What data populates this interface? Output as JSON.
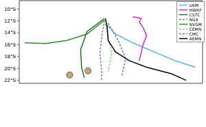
{
  "chart_data": {
    "type": "line",
    "xlim": [
      50,
      70
    ],
    "ylim": [
      -22.5,
      -8.6
    ],
    "yticks": [
      {
        "value": -10,
        "label": "10°S"
      },
      {
        "value": -12,
        "label": "12°S"
      },
      {
        "value": -14,
        "label": "14°S"
      },
      {
        "value": -16,
        "label": "16°S"
      },
      {
        "value": -18,
        "label": "18°S"
      },
      {
        "value": -20,
        "label": "20°S"
      },
      {
        "value": -22,
        "label": "22°S"
      }
    ],
    "tick_labels": "y",
    "grid": false,
    "legend": "upper right",
    "series": [
      {
        "name": "UKM",
        "color": "#4fb3e8",
        "line_style": "solid",
        "x": [
          59.6,
          60.5,
          62.4,
          64.7,
          67.0,
          69.2
        ],
        "values": [
          -12.7,
          -14.2,
          -15.7,
          -17.2,
          -18.7,
          -19.8
        ]
      },
      {
        "name": "HWRF",
        "color": "#e020e0",
        "line_style": "solid",
        "x": [
          62.4,
          63.3,
          63.1,
          63.5,
          63.9,
          63.5,
          63.1
        ],
        "values": [
          -11.3,
          -11.6,
          -12.2,
          -13.1,
          -14.5,
          -16.0,
          -18.7
        ]
      },
      {
        "name": "CSTC",
        "color": "#1a7a1a",
        "line_style": "solid",
        "x": [
          59.3,
          57.4,
          56.7,
          56.8,
          57.1
        ],
        "values": [
          -11.6,
          -13.8,
          -16.8,
          -19.8,
          -21.6
        ]
      },
      {
        "name": "NGX",
        "color": "#808080",
        "line_style": "dashed",
        "x": [
          59.3,
          59.0,
          58.8,
          59.0,
          59.0
        ],
        "values": [
          -11.9,
          -14.6,
          -17.5,
          -20.5,
          -21.9
        ]
      },
      {
        "name": "NVGM",
        "color": "#2e8b2e",
        "line_style": "solid",
        "x": [
          59.3,
          57.4,
          55.2,
          52.9,
          50.6
        ],
        "values": [
          -11.9,
          -14.2,
          -15.3,
          -15.8,
          -15.7
        ]
      },
      {
        "name": "CEMN",
        "color": "#7fd07f",
        "line_style": "dashed",
        "x": [
          59.3,
          59.7,
          60.1,
          59.7
        ],
        "values": [
          -11.9,
          -14.6,
          -17.5,
          -20.5
        ]
      },
      {
        "name": "CMC",
        "color": "#5f7f9f",
        "line_style": "dashed",
        "x": [
          59.7,
          60.8,
          61.6,
          61.2
        ],
        "values": [
          -12.4,
          -15.3,
          -18.3,
          -21.2
        ]
      },
      {
        "name": "AEMN",
        "color": "#000000",
        "line_style": "solid",
        "x": [
          59.4,
          59.6,
          59.7,
          60.5,
          62.0,
          63.9,
          66.6,
          68.2
        ],
        "values": [
          -11.6,
          -13.1,
          -15.3,
          -17.2,
          -18.7,
          -19.8,
          -20.9,
          -22.0
        ]
      }
    ],
    "islands": {
      "color": "#c8a878",
      "x": [
        55.5,
        57.5
      ],
      "values": [
        -21.1,
        -20.4
      ]
    }
  }
}
